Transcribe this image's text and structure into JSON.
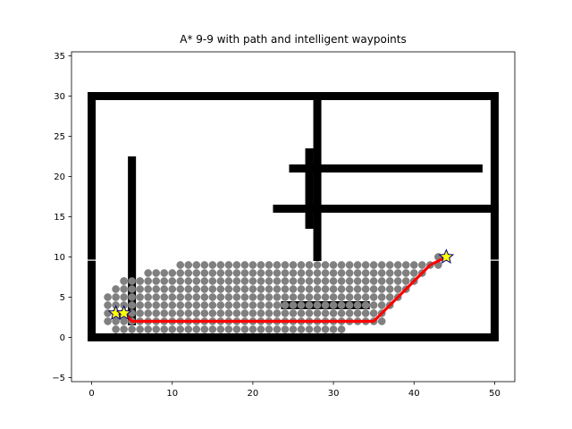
{
  "chart_data": {
    "type": "scatter",
    "title": "A* 9-9 with path and intelligent waypoints",
    "xlabel": "",
    "ylabel": "",
    "xlim": [
      -2.5,
      52.5
    ],
    "ylim": [
      -5.5,
      35.5
    ],
    "xticks": [
      0,
      10,
      20,
      30,
      40,
      50
    ],
    "yticks": [
      -5,
      0,
      5,
      10,
      15,
      20,
      25,
      30,
      35
    ],
    "grid": false,
    "legend": "none",
    "colors": {
      "obstacle": "#000000",
      "explored": "#808080",
      "path": "#ff0000",
      "waypoint_fill": "#ffff00",
      "waypoint_edge": "#000080",
      "door_gap": "#ffffff"
    },
    "obstacles": [
      {
        "from": [
          0,
          0
        ],
        "to": [
          50,
          0
        ]
      },
      {
        "from": [
          0,
          30
        ],
        "to": [
          50,
          30
        ]
      },
      {
        "from": [
          0,
          0
        ],
        "to": [
          0,
          30
        ]
      },
      {
        "from": [
          50,
          0
        ],
        "to": [
          50,
          30
        ]
      },
      {
        "from": [
          5,
          2
        ],
        "to": [
          5,
          22
        ]
      },
      {
        "from": [
          28,
          10
        ],
        "to": [
          28,
          30
        ]
      },
      {
        "from": [
          27,
          14
        ],
        "to": [
          27,
          23
        ]
      },
      {
        "from": [
          25,
          21
        ],
        "to": [
          48,
          21
        ]
      },
      {
        "from": [
          23,
          16
        ],
        "to": [
          50,
          16
        ]
      },
      {
        "from": [
          24,
          4
        ],
        "to": [
          34,
          4
        ]
      }
    ],
    "door_gaps": [
      [
        0,
        9.6
      ],
      [
        50,
        9.6
      ]
    ],
    "explored_rows": [
      {
        "y": 1,
        "x_min": 3,
        "x_max": 31
      },
      {
        "y": 2,
        "x_min": 2,
        "x_max": 36
      },
      {
        "y": 3,
        "x_min": 2,
        "x_max": 36
      },
      {
        "y": 4,
        "x_min": 2,
        "x_max": 37
      },
      {
        "y": 5,
        "x_min": 2,
        "x_max": 38
      },
      {
        "y": 6,
        "x_min": 3,
        "x_max": 39
      },
      {
        "y": 7,
        "x_min": 4,
        "x_max": 40
      },
      {
        "y": 8,
        "x_min": 10,
        "x_max": 41
      },
      {
        "y": 9,
        "x_min": 12,
        "x_max": 43
      }
    ],
    "explored_extra": [
      [
        4,
        7
      ],
      [
        6,
        7
      ],
      [
        7,
        8
      ],
      [
        8,
        8
      ],
      [
        9,
        8
      ],
      [
        11,
        9
      ],
      [
        43,
        10
      ]
    ],
    "path": [
      [
        3,
        3
      ],
      [
        4,
        3
      ],
      [
        5,
        2
      ],
      [
        35,
        2
      ],
      [
        42,
        9
      ],
      [
        44,
        10
      ]
    ],
    "waypoints": [
      [
        3,
        3
      ],
      [
        4,
        3
      ],
      [
        44,
        10
      ]
    ]
  }
}
